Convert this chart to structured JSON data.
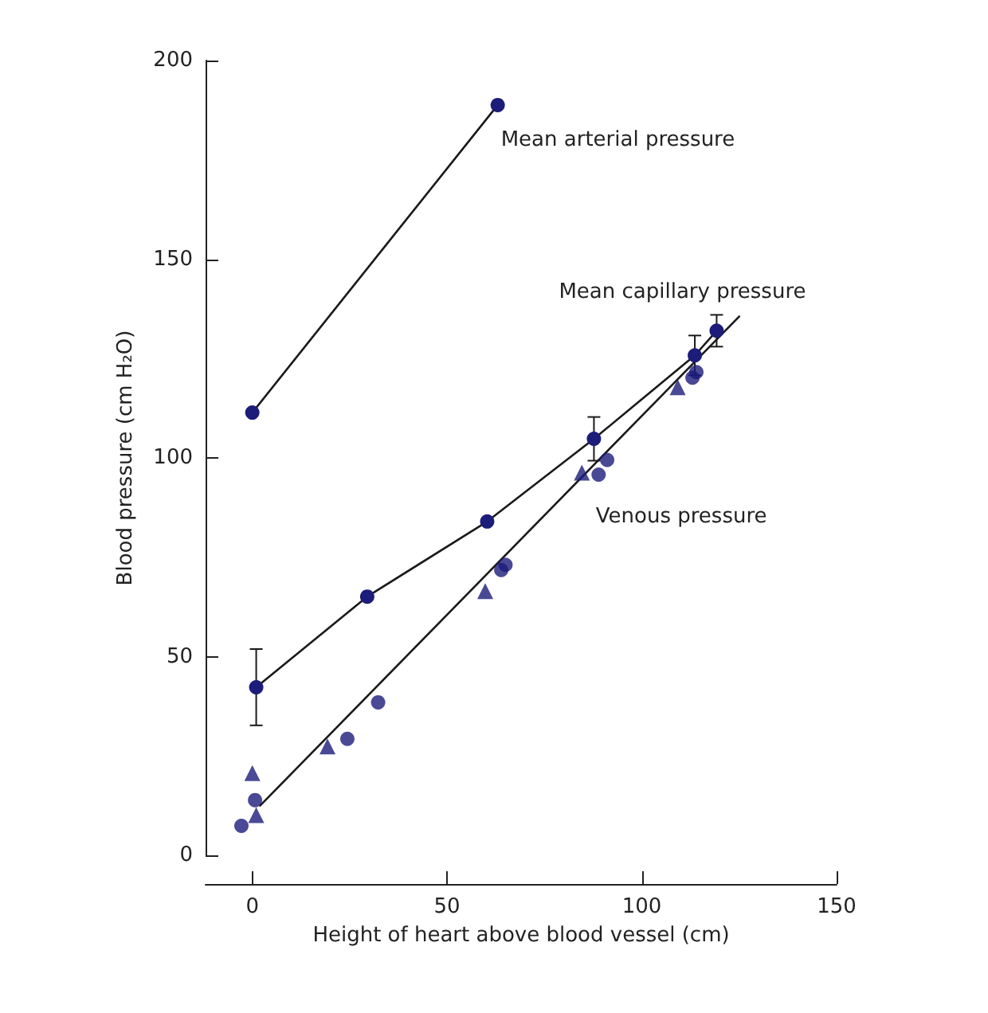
{
  "chart_data": {
    "type": "scatter",
    "xlabel": "Height of heart above blood vessel (cm)",
    "ylabel": "Blood pressure (cm H₂O)",
    "xlim": [
      -12,
      150
    ],
    "xticks": [
      0,
      50,
      100,
      150
    ],
    "ylim": [
      0,
      200
    ],
    "yticks": [
      0,
      50,
      100,
      150,
      200
    ],
    "grid": false,
    "series": [
      {
        "name": "Mean arterial pressure",
        "type": "line",
        "marker": "circle",
        "color": "#1c1c7a",
        "x": [
          0,
          63
        ],
        "values": [
          111.4,
          188.8
        ]
      },
      {
        "name": "Mean capillary pressure",
        "type": "line",
        "marker": "circle",
        "color": "#1c1c7a",
        "x": [
          1,
          29.5,
          60.3,
          87.7,
          113.6,
          119.2
        ],
        "values": [
          42.3,
          65.1,
          84,
          104.8,
          125.8,
          132
        ],
        "errors": [
          9.6,
          null,
          null,
          5.5,
          5,
          4
        ]
      },
      {
        "marker": "circle",
        "color": "#1c1c7a",
        "x": [
          -2.8,
          0.7,
          24.4,
          32.3,
          63.9,
          65,
          88.9,
          91.1,
          113,
          114
        ],
        "values": [
          7.4,
          13.9,
          29.3,
          38.5,
          71.8,
          73.1,
          95.8,
          99.5,
          120.2,
          121.6
        ]
      },
      {
        "marker": "triangle",
        "color": "#1c1c7a",
        "x": [
          0,
          1,
          19.3,
          59.8,
          84.6,
          109.2
        ],
        "values": [
          20.7,
          10.1,
          27.4,
          66.5,
          96.3,
          117.8
        ]
      },
      {
        "name": "Venous pressure",
        "type": "line",
        "marker": "none",
        "color": "#1a1a1a",
        "x": [
          2,
          125
        ],
        "values": [
          12.5,
          135.6
        ]
      }
    ]
  }
}
